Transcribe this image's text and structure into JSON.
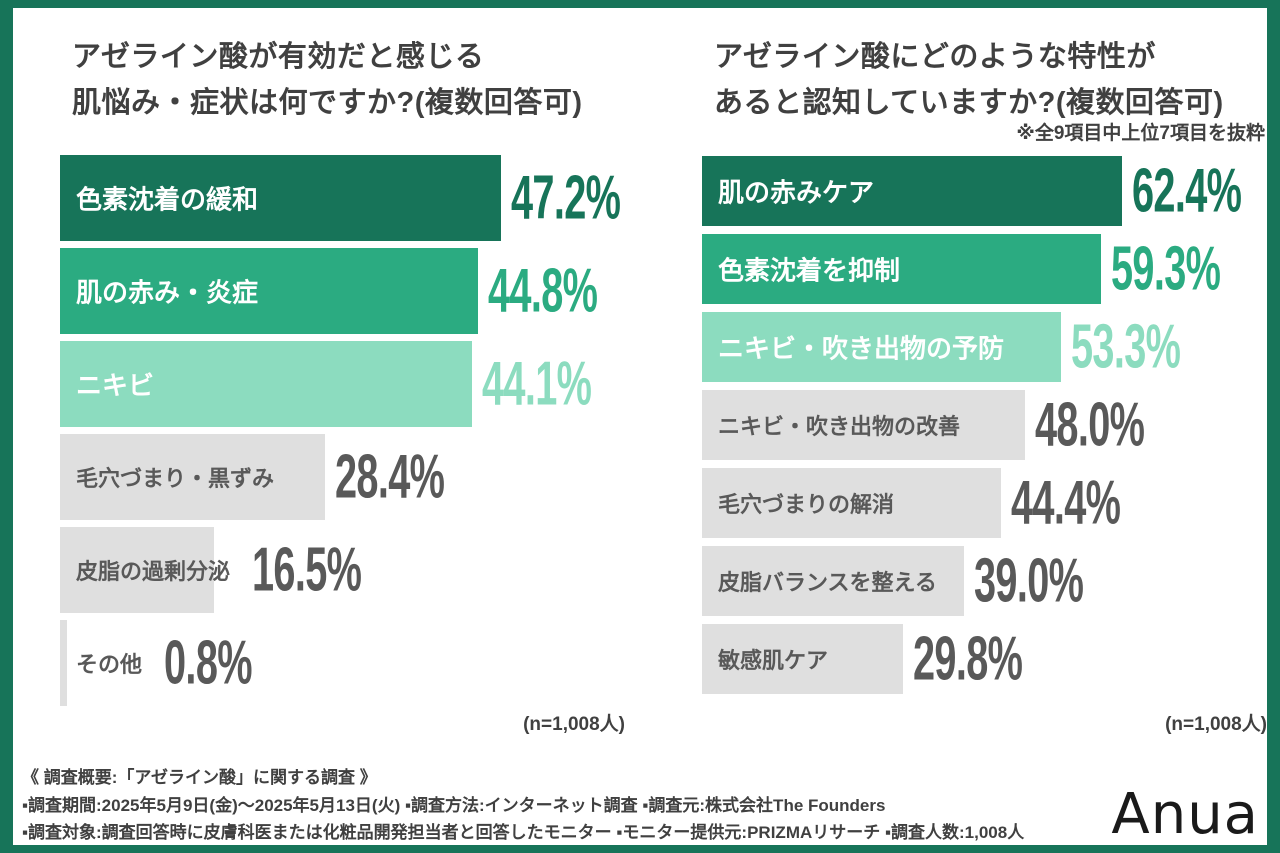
{
  "palette": {
    "dark": "#177459",
    "mid": "#2BAB81",
    "light": "#8CDCBF",
    "gray": "#DFDFDF",
    "gray_text": "#595959",
    "title_text": "#404040",
    "label_on_green": "#FFFFFF",
    "frame": "#177459",
    "logo_text_color": "#1A1A1A"
  },
  "chart_data": [
    {
      "type": "bar",
      "orientation": "horizontal",
      "title_lines": [
        "アゼライン酸が有効だと感じる",
        "肌悩み・症状は何ですか?(複数回答可)"
      ],
      "categories": [
        "色素沈着の緩和",
        "肌の赤み・炎症",
        "ニキビ",
        "毛穴づまり・黒ずみ",
        "皮脂の過剰分泌",
        "その他"
      ],
      "values": [
        47.2,
        44.8,
        44.1,
        28.4,
        16.5,
        0.8
      ],
      "value_labels": [
        "47.2%",
        "44.8%",
        "44.1%",
        "28.4%",
        "16.5%",
        "0.8%"
      ],
      "tones": [
        "dark",
        "mid",
        "light",
        "gray",
        "gray",
        "gray"
      ],
      "unit": "%",
      "xlim": [
        0,
        60
      ],
      "grid": false,
      "legend": "none",
      "n_label": "(n=1,008人)"
    },
    {
      "type": "bar",
      "orientation": "horizontal",
      "title_lines": [
        "アゼライン酸にどのような特性が",
        "あると認知していますか?(複数回答可)"
      ],
      "note": "※全9項目中上位7項目を抜粋",
      "categories": [
        "肌の赤みケア",
        "色素沈着を抑制",
        "ニキビ・吹き出物の予防",
        "ニキビ・吹き出物の改善",
        "毛穴づまりの解消",
        "皮脂バランスを整える",
        "敏感肌ケア"
      ],
      "values": [
        62.4,
        59.3,
        53.3,
        48.0,
        44.4,
        39.0,
        29.8
      ],
      "value_labels": [
        "62.4%",
        "59.3%",
        "53.3%",
        "48.0%",
        "44.4%",
        "39.0%",
        "29.8%"
      ],
      "tones": [
        "dark",
        "mid",
        "light",
        "gray",
        "gray",
        "gray",
        "gray"
      ],
      "unit": "%",
      "xlim": [
        0,
        84
      ],
      "grid": false,
      "legend": "none",
      "n_label": "(n=1,008人)"
    }
  ],
  "footer": {
    "heading": "《 調査概要:「アゼライン酸」に関する調査 》",
    "lines": [
      "▪調査期間:2025年5月9日(金)〜2025年5月13日(火) ▪調査方法:インターネット調査  ▪調査元:株式会社The Founders",
      "▪調査対象:調査回答時に皮膚科医または化粧品開発担当者と回答したモニター ▪モニター提供元:PRIZMAリサーチ ▪調査人数:1,008人"
    ]
  },
  "logo": {
    "text": "Anua"
  }
}
